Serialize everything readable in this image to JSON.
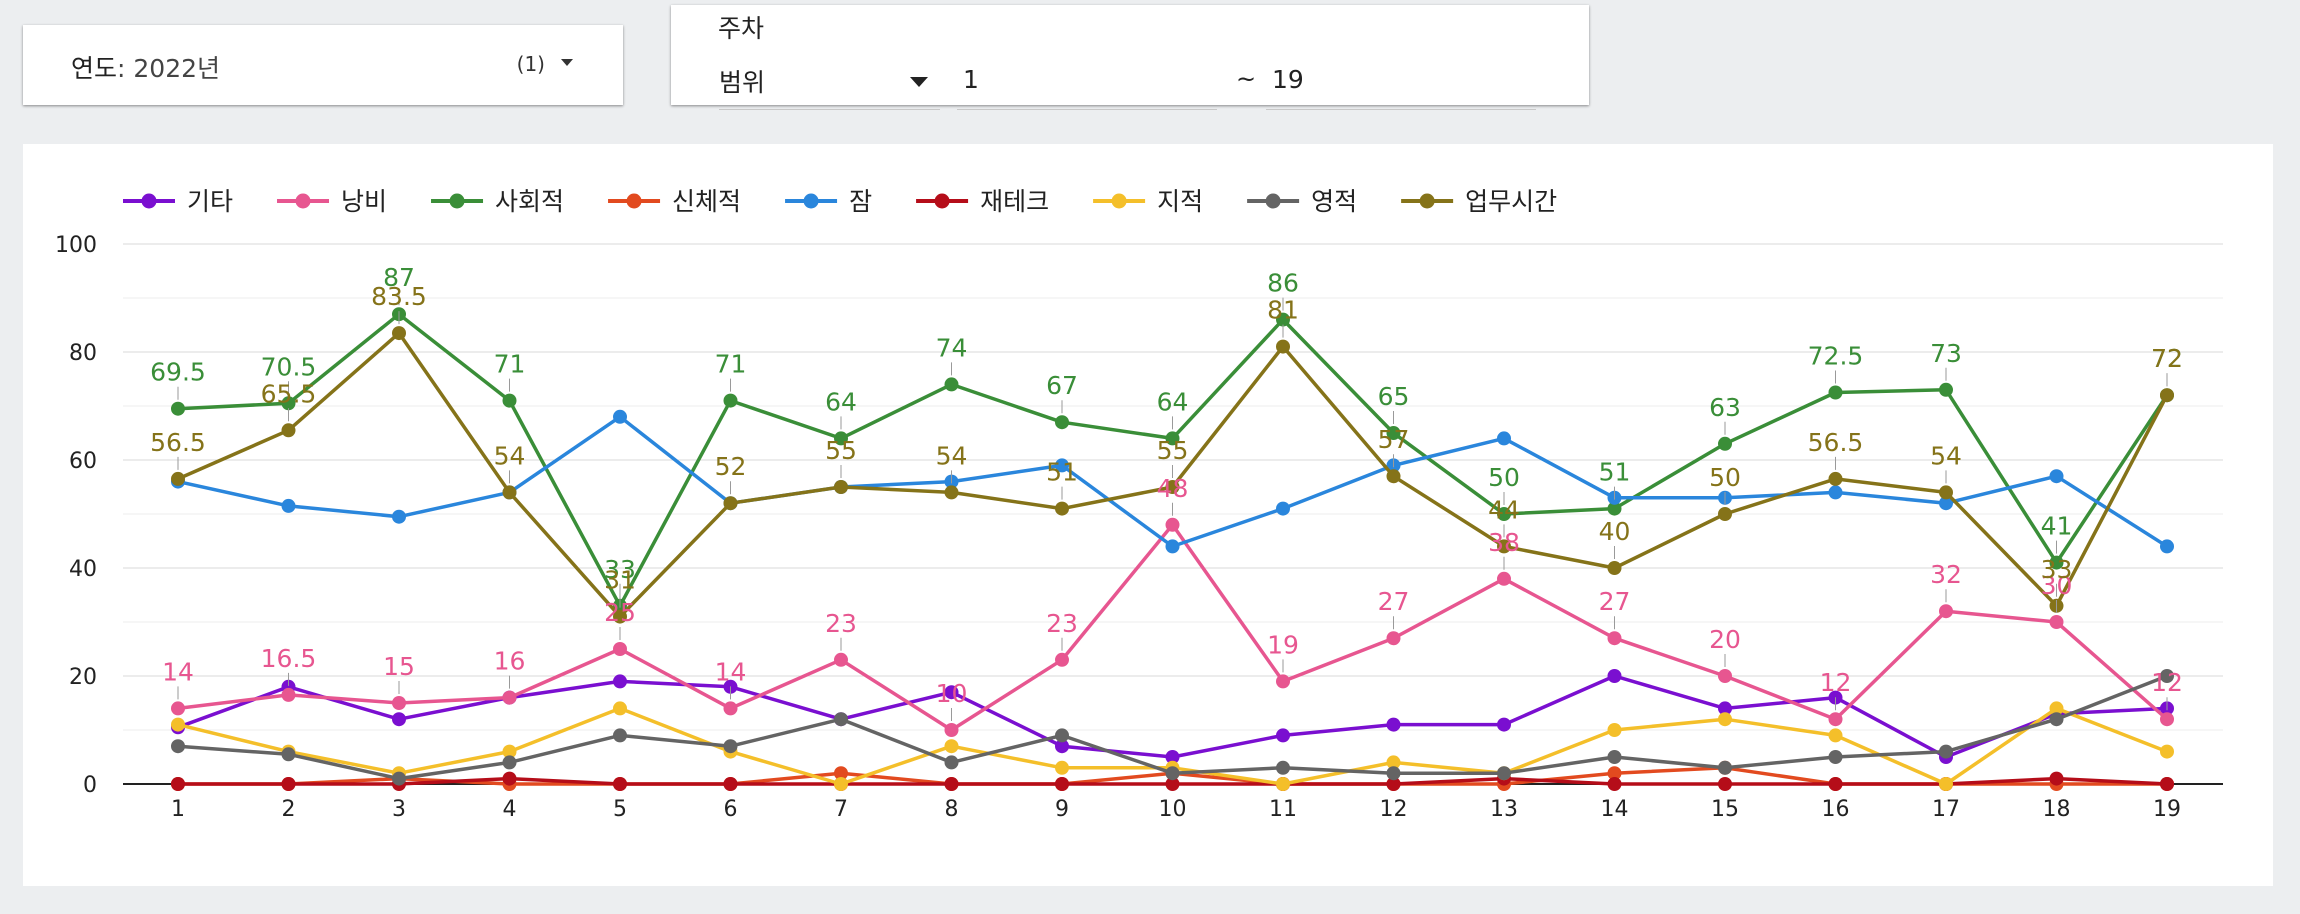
{
  "filters": {
    "year_label": "연도",
    "year_value": ": 2022년",
    "year_count": "(1)",
    "week_title": "주차",
    "mode_value": "범위",
    "range_start": "1",
    "range_separator": "~",
    "range_end": "19"
  },
  "chart_data": {
    "type": "line",
    "x": [
      1,
      2,
      3,
      4,
      5,
      6,
      7,
      8,
      9,
      10,
      11,
      12,
      13,
      14,
      15,
      16,
      17,
      18,
      19
    ],
    "ylim": [
      0,
      100
    ],
    "yticks": [
      0,
      20,
      40,
      60,
      80,
      100
    ],
    "grid": true,
    "legend_position": "top-left",
    "series": [
      {
        "name": "기타",
        "color": "#7a0fd0",
        "labels": false,
        "values": [
          10.5,
          18,
          12,
          16,
          19,
          18,
          12,
          17,
          7,
          5,
          9,
          11,
          11,
          20,
          14,
          16,
          5,
          13,
          14
        ]
      },
      {
        "name": "낭비",
        "color": "#e75690",
        "labels": true,
        "values": [
          14,
          16.5,
          15,
          16,
          25,
          14,
          23,
          10,
          23,
          48,
          19,
          27,
          38,
          27,
          20,
          12,
          32,
          30,
          12
        ]
      },
      {
        "name": "사회적",
        "color": "#3a8e38",
        "labels": true,
        "values": [
          69.5,
          70.5,
          87,
          71,
          33,
          71,
          64,
          74,
          67,
          64,
          86,
          65,
          50,
          51,
          63,
          72.5,
          73,
          41,
          72
        ]
      },
      {
        "name": "신체적",
        "color": "#e24a1f",
        "labels": false,
        "values": [
          0,
          0,
          1,
          0,
          0,
          0,
          2,
          0,
          0,
          2,
          0,
          0,
          0,
          2,
          3,
          0,
          0,
          0,
          0
        ]
      },
      {
        "name": "잠",
        "color": "#2a86dc",
        "labels": false,
        "values": [
          56,
          51.5,
          49.5,
          54,
          68,
          52,
          55,
          56,
          59,
          44,
          51,
          59,
          64,
          53,
          53,
          54,
          52,
          57,
          44
        ]
      },
      {
        "name": "재테크",
        "color": "#b50d19",
        "labels": false,
        "values": [
          0,
          0,
          0,
          1,
          0,
          0,
          0,
          0,
          0,
          0,
          0,
          0,
          1,
          0,
          0,
          0,
          0,
          1,
          0
        ]
      },
      {
        "name": "지적",
        "color": "#f4bf2a",
        "labels": false,
        "values": [
          11,
          6,
          2,
          6,
          14,
          6,
          0,
          7,
          3,
          3,
          0,
          4,
          2,
          10,
          12,
          9,
          0,
          14,
          6
        ]
      },
      {
        "name": "영적",
        "color": "#646464",
        "labels": false,
        "values": [
          7,
          5.5,
          1,
          4,
          9,
          7,
          12,
          4,
          9,
          2,
          3,
          2,
          2,
          5,
          3,
          5,
          6,
          12,
          20
        ]
      },
      {
        "name": "업무시간",
        "color": "#857319",
        "labels": true,
        "values": [
          56.5,
          65.5,
          83.5,
          54,
          31,
          52,
          55,
          54,
          51,
          55,
          81,
          57,
          44,
          40,
          50,
          56.5,
          54,
          33,
          72
        ]
      }
    ]
  }
}
